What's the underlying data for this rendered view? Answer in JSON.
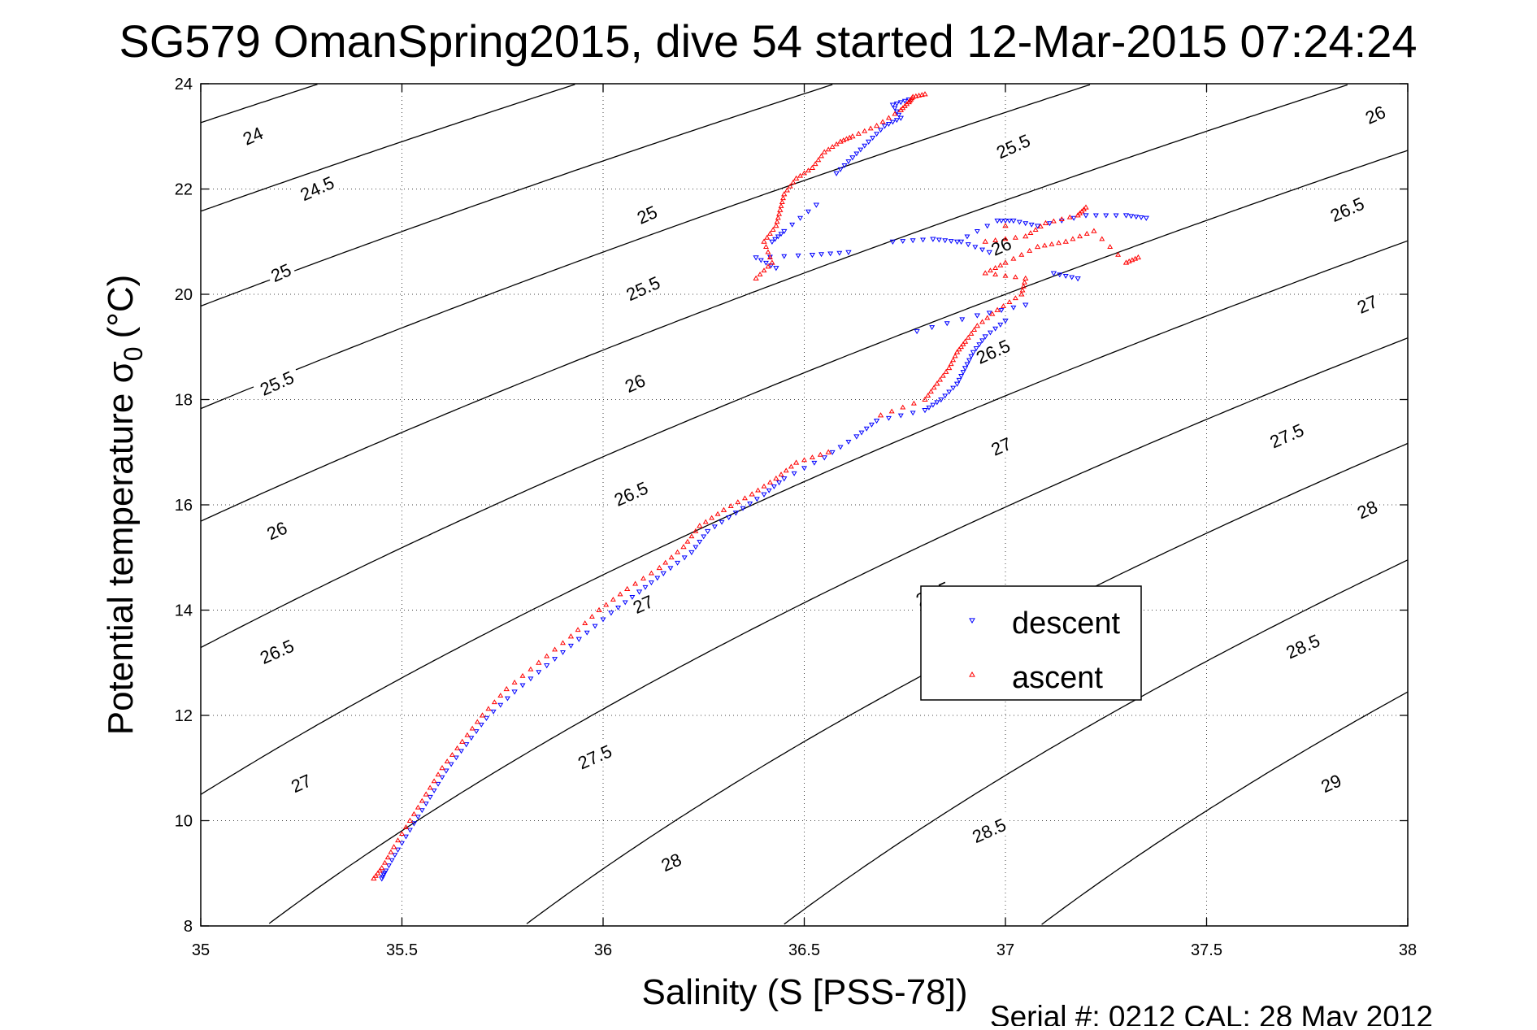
{
  "chart_data": {
    "type": "scatter",
    "title": "SG579 OmanSpring2015, dive 54 started 12-Mar-2015 07:24:24",
    "xlabel": "Salinity (S [PSS-78])",
    "ylabel_main": "Potential temperature σ",
    "ylabel_sub": "0",
    "ylabel_unit": "(°C)",
    "xlim": [
      35,
      38
    ],
    "ylim": [
      8,
      24
    ],
    "x_ticks": [
      35,
      35.5,
      36,
      36.5,
      37,
      37.5,
      38
    ],
    "x_tick_labels": [
      "35",
      "35.5",
      "36",
      "36.5",
      "37",
      "37.5",
      "38"
    ],
    "y_ticks": [
      8,
      10,
      12,
      14,
      16,
      18,
      20,
      22,
      24
    ],
    "y_tick_labels": [
      "8",
      "10",
      "12",
      "14",
      "16",
      "18",
      "20",
      "22",
      "24"
    ],
    "grid": true,
    "legend_position": "right-center",
    "footer": "Serial #: 0212  CAL: 28 May 2012",
    "contours": {
      "sigma_levels": [
        24,
        24.5,
        25,
        25.5,
        26,
        26.5,
        27,
        27.5,
        28,
        28.5,
        29
      ],
      "labels": [
        {
          "text": "24",
          "s": 35.13,
          "t": 23.0
        },
        {
          "text": "24.5",
          "s": 35.29,
          "t": 22.0
        },
        {
          "text": "25",
          "s": 35.2,
          "t": 20.4
        },
        {
          "text": "25.5",
          "s": 35.19,
          "t": 18.3
        },
        {
          "text": "26",
          "s": 35.19,
          "t": 15.5
        },
        {
          "text": "26.5",
          "s": 35.19,
          "t": 13.2
        },
        {
          "text": "27",
          "s": 35.25,
          "t": 10.7
        },
        {
          "text": "25",
          "s": 36.11,
          "t": 21.5
        },
        {
          "text": "25.5",
          "s": 36.1,
          "t": 20.1
        },
        {
          "text": "26",
          "s": 36.08,
          "t": 18.3
        },
        {
          "text": "26.5",
          "s": 36.07,
          "t": 16.2
        },
        {
          "text": "27",
          "s": 36.1,
          "t": 14.1
        },
        {
          "text": "27.5",
          "s": 35.98,
          "t": 11.2
        },
        {
          "text": "28",
          "s": 36.17,
          "t": 9.2
        },
        {
          "text": "25.5",
          "s": 37.02,
          "t": 22.8
        },
        {
          "text": "26",
          "s": 36.99,
          "t": 20.9
        },
        {
          "text": "26.5",
          "s": 36.97,
          "t": 18.9
        },
        {
          "text": "27",
          "s": 36.99,
          "t": 17.1
        },
        {
          "text": "27.5",
          "s": 36.82,
          "t": 14.3
        },
        {
          "text": "28.5",
          "s": 36.96,
          "t": 9.8
        },
        {
          "text": "26",
          "s": 37.92,
          "t": 23.4
        },
        {
          "text": "26.5",
          "s": 37.85,
          "t": 21.6
        },
        {
          "text": "27",
          "s": 37.9,
          "t": 19.8
        },
        {
          "text": "27.5",
          "s": 37.7,
          "t": 17.3
        },
        {
          "text": "28",
          "s": 37.9,
          "t": 15.9
        },
        {
          "text": "28.5",
          "s": 37.74,
          "t": 13.3
        },
        {
          "text": "29",
          "s": 37.81,
          "t": 10.7
        }
      ]
    },
    "series": [
      {
        "name": "descent",
        "color": "#0000ff",
        "marker": "triangle-down",
        "points": [
          [
            35.45,
            8.9
          ],
          [
            35.46,
            9.05
          ],
          [
            35.49,
            9.45
          ],
          [
            35.53,
            9.95
          ],
          [
            35.57,
            10.45
          ],
          [
            35.61,
            10.95
          ],
          [
            35.66,
            11.45
          ],
          [
            35.71,
            11.95
          ],
          [
            35.78,
            12.45
          ],
          [
            35.86,
            12.95
          ],
          [
            35.94,
            13.45
          ],
          [
            36.02,
            13.95
          ],
          [
            36.09,
            14.35
          ],
          [
            36.15,
            14.7
          ],
          [
            36.22,
            15.1
          ],
          [
            36.26,
            15.5
          ],
          [
            36.33,
            15.85
          ],
          [
            36.4,
            16.2
          ],
          [
            36.45,
            16.5
          ],
          [
            36.55,
            16.9
          ],
          [
            36.63,
            17.3
          ],
          [
            36.68,
            17.6
          ],
          [
            36.8,
            17.8
          ],
          [
            36.84,
            18.0
          ],
          [
            36.88,
            18.3
          ],
          [
            36.9,
            18.6
          ],
          [
            36.92,
            18.9
          ],
          [
            36.95,
            19.2
          ],
          [
            37.0,
            19.5
          ],
          [
            36.78,
            19.3
          ],
          [
            36.93,
            19.6
          ],
          [
            37.05,
            19.8
          ],
          [
            36.43,
            20.5
          ],
          [
            36.38,
            20.7
          ],
          [
            36.52,
            20.75
          ],
          [
            36.61,
            20.8
          ],
          [
            36.42,
            21.0
          ],
          [
            36.45,
            21.2
          ],
          [
            36.53,
            21.7
          ],
          [
            36.58,
            22.3
          ],
          [
            36.62,
            22.6
          ],
          [
            36.66,
            22.9
          ],
          [
            36.7,
            23.2
          ],
          [
            36.74,
            23.35
          ],
          [
            36.72,
            23.6
          ],
          [
            36.76,
            23.7
          ],
          [
            36.72,
            21.0
          ],
          [
            36.82,
            21.05
          ],
          [
            36.88,
            21.0
          ],
          [
            36.98,
            21.4
          ],
          [
            37.02,
            21.4
          ],
          [
            37.08,
            21.3
          ],
          [
            37.2,
            21.5
          ],
          [
            37.3,
            21.5
          ],
          [
            37.35,
            21.45
          ],
          [
            37.12,
            20.4
          ],
          [
            37.18,
            20.3
          ],
          [
            36.89,
            21.0
          ],
          [
            36.96,
            20.8
          ]
        ]
      },
      {
        "name": "ascent",
        "color": "#ff0000",
        "marker": "triangle-up",
        "points": [
          [
            35.43,
            8.9
          ],
          [
            35.45,
            9.1
          ],
          [
            35.48,
            9.5
          ],
          [
            35.52,
            10.0
          ],
          [
            35.56,
            10.5
          ],
          [
            35.6,
            11.0
          ],
          [
            35.65,
            11.5
          ],
          [
            35.7,
            12.0
          ],
          [
            35.76,
            12.5
          ],
          [
            35.84,
            13.0
          ],
          [
            35.92,
            13.5
          ],
          [
            35.99,
            14.0
          ],
          [
            36.06,
            14.4
          ],
          [
            36.14,
            14.8
          ],
          [
            36.2,
            15.2
          ],
          [
            36.24,
            15.6
          ],
          [
            36.3,
            15.9
          ],
          [
            36.37,
            16.2
          ],
          [
            36.43,
            16.5
          ],
          [
            36.48,
            16.8
          ],
          [
            36.56,
            17.0
          ],
          [
            36.69,
            17.7
          ],
          [
            36.8,
            18.0
          ],
          [
            36.83,
            18.3
          ],
          [
            36.86,
            18.6
          ],
          [
            36.88,
            18.9
          ],
          [
            36.9,
            19.1
          ],
          [
            36.93,
            19.4
          ],
          [
            36.98,
            19.7
          ],
          [
            37.04,
            20.0
          ],
          [
            37.05,
            20.3
          ],
          [
            36.95,
            20.4
          ],
          [
            37.0,
            20.6
          ],
          [
            37.08,
            20.9
          ],
          [
            37.15,
            21.0
          ],
          [
            37.22,
            21.2
          ],
          [
            37.3,
            20.6
          ],
          [
            37.33,
            20.7
          ],
          [
            36.38,
            20.3
          ],
          [
            36.42,
            20.6
          ],
          [
            36.4,
            21.0
          ],
          [
            36.43,
            21.3
          ],
          [
            36.44,
            21.6
          ],
          [
            36.45,
            21.9
          ],
          [
            36.48,
            22.2
          ],
          [
            36.52,
            22.4
          ],
          [
            36.55,
            22.7
          ],
          [
            36.59,
            22.9
          ],
          [
            36.62,
            23.0
          ],
          [
            36.68,
            23.2
          ],
          [
            36.74,
            23.5
          ],
          [
            36.76,
            23.65
          ],
          [
            36.77,
            23.75
          ],
          [
            36.8,
            23.8
          ],
          [
            36.95,
            21.0
          ],
          [
            37.05,
            21.1
          ],
          [
            37.1,
            21.35
          ],
          [
            37.18,
            21.5
          ],
          [
            37.2,
            21.65
          ],
          [
            37.0,
            21.3
          ]
        ]
      }
    ]
  }
}
